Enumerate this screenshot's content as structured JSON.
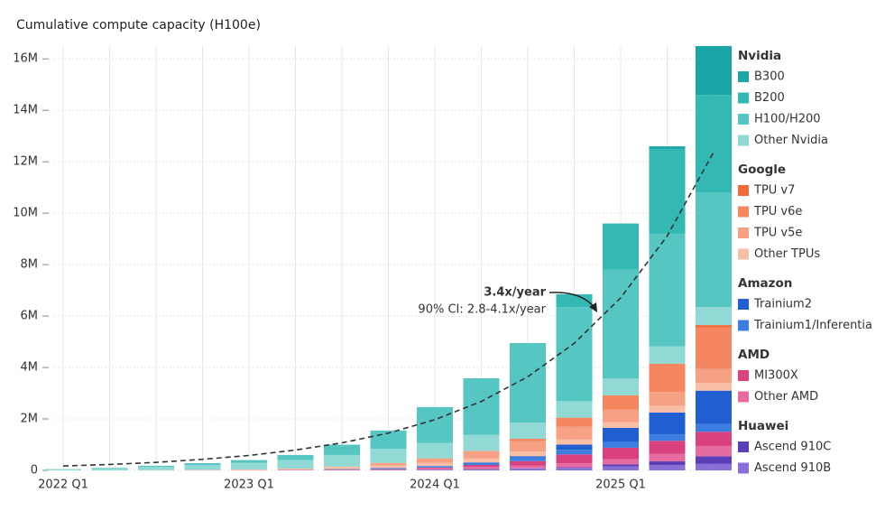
{
  "chart_data": {
    "type": "stacked_bar",
    "title": "Cumulative compute capacity (H100e)",
    "categories": [
      "2022 Q1",
      null,
      null,
      null,
      "2023 Q1",
      null,
      null,
      null,
      "2024 Q1",
      null,
      null,
      null,
      "2025 Q1",
      null,
      null
    ],
    "ylim": [
      0,
      16500000
    ],
    "yticks": [
      0,
      {
        "value": 2000000,
        "label": "2M"
      },
      {
        "value": 4000000,
        "label": "4M"
      },
      {
        "value": 6000000,
        "label": "6M"
      },
      {
        "value": 8000000,
        "label": "8M"
      },
      {
        "value": 10000000,
        "label": "10M"
      },
      {
        "value": 12000000,
        "label": "12M"
      },
      {
        "value": 14000000,
        "label": "14M"
      },
      {
        "value": 16000000,
        "label": "16M"
      }
    ],
    "grid": true,
    "legend": "right",
    "vendors": [
      "Nvidia",
      "Google",
      "Amazon",
      "AMD",
      "Huawei"
    ],
    "series": [
      {
        "name": "B300",
        "vendor": "Nvidia",
        "color": "#1aa6a6",
        "values": [
          0,
          0,
          0,
          0,
          0,
          0,
          0,
          0,
          0,
          0,
          0,
          0,
          0,
          100000,
          1900000
        ]
      },
      {
        "name": "B200",
        "vendor": "Nvidia",
        "color": "#33b8b4",
        "values": [
          0,
          0,
          0,
          0,
          0,
          0,
          0,
          0,
          0,
          0,
          0,
          500000,
          1800000,
          3300000,
          3800000
        ]
      },
      {
        "name": "H100/H200",
        "vendor": "Nvidia",
        "color": "#55c6c1",
        "values": [
          10000,
          20000,
          50000,
          80000,
          110000,
          200000,
          400000,
          710000,
          1390000,
          2200000,
          3090000,
          3660000,
          4230000,
          4380000,
          4450000
        ]
      },
      {
        "name": "Other Nvidia",
        "vendor": "Nvidia",
        "color": "#90d9d4",
        "values": [
          40000,
          80000,
          120000,
          180000,
          250000,
          330000,
          450000,
          550000,
          600000,
          620000,
          630000,
          640000,
          650000,
          670000,
          700000
        ]
      },
      {
        "name": "TPU v7",
        "vendor": "Google",
        "color": "#f26b3a",
        "values": [
          0,
          0,
          0,
          0,
          0,
          0,
          0,
          0,
          0,
          0,
          0,
          0,
          0,
          0,
          100000
        ]
      },
      {
        "name": "TPU v6e",
        "vendor": "Google",
        "color": "#f4875f",
        "values": [
          0,
          0,
          0,
          0,
          0,
          0,
          0,
          0,
          0,
          0,
          100000,
          350000,
          550000,
          1100000,
          1600000
        ]
      },
      {
        "name": "TPU v5e",
        "vendor": "Google",
        "color": "#f6a184",
        "values": [
          0,
          0,
          0,
          0,
          0,
          0,
          20000,
          100000,
          180000,
          300000,
          400000,
          500000,
          500000,
          550000,
          550000
        ]
      },
      {
        "name": "Other TPUs",
        "vendor": "Google",
        "color": "#f8bfa6",
        "values": [
          0,
          0,
          10000,
          20000,
          30000,
          50000,
          80000,
          100000,
          120000,
          150000,
          180000,
          200000,
          220000,
          250000,
          300000
        ]
      },
      {
        "name": "Trainium2",
        "vendor": "Amazon",
        "color": "#1f5fd1",
        "values": [
          0,
          0,
          0,
          0,
          0,
          0,
          0,
          0,
          0,
          0,
          50000,
          200000,
          550000,
          850000,
          1300000
        ]
      },
      {
        "name": "Trainium1/Inferentia",
        "vendor": "Amazon",
        "color": "#3c7fe0",
        "values": [
          0,
          0,
          0,
          0,
          0,
          0,
          20000,
          40000,
          60000,
          100000,
          140000,
          180000,
          220000,
          250000,
          300000
        ]
      },
      {
        "name": "MI300X",
        "vendor": "AMD",
        "color": "#d9417f",
        "values": [
          0,
          0,
          0,
          0,
          0,
          0,
          0,
          0,
          20000,
          80000,
          180000,
          350000,
          450000,
          500000,
          550000
        ]
      },
      {
        "name": "Other AMD",
        "vendor": "AMD",
        "color": "#e66ba0",
        "values": [
          0,
          0,
          0,
          0,
          10000,
          20000,
          30000,
          40000,
          60000,
          80000,
          100000,
          150000,
          200000,
          300000,
          400000
        ]
      },
      {
        "name": "Ascend 910C",
        "vendor": "Huawei",
        "color": "#5b3fb8",
        "values": [
          0,
          0,
          0,
          0,
          0,
          0,
          0,
          0,
          0,
          0,
          0,
          20000,
          80000,
          150000,
          300000
        ]
      },
      {
        "name": "Ascend 910B",
        "vendor": "Huawei",
        "color": "#8a6fd8",
        "values": [
          0,
          0,
          0,
          0,
          0,
          0,
          0,
          10000,
          30000,
          50000,
          80000,
          100000,
          150000,
          200000,
          250000
        ]
      }
    ],
    "trend": {
      "label": "3.4x/year",
      "ci_label": "90% CI: 2.8-4.1x/year",
      "color": "#333333",
      "values": [
        170000,
        230000,
        310000,
        430000,
        580000,
        790000,
        1070000,
        1450000,
        1970000,
        2680000,
        3640000,
        4940000,
        6710000,
        9110000,
        12370000
      ]
    }
  }
}
